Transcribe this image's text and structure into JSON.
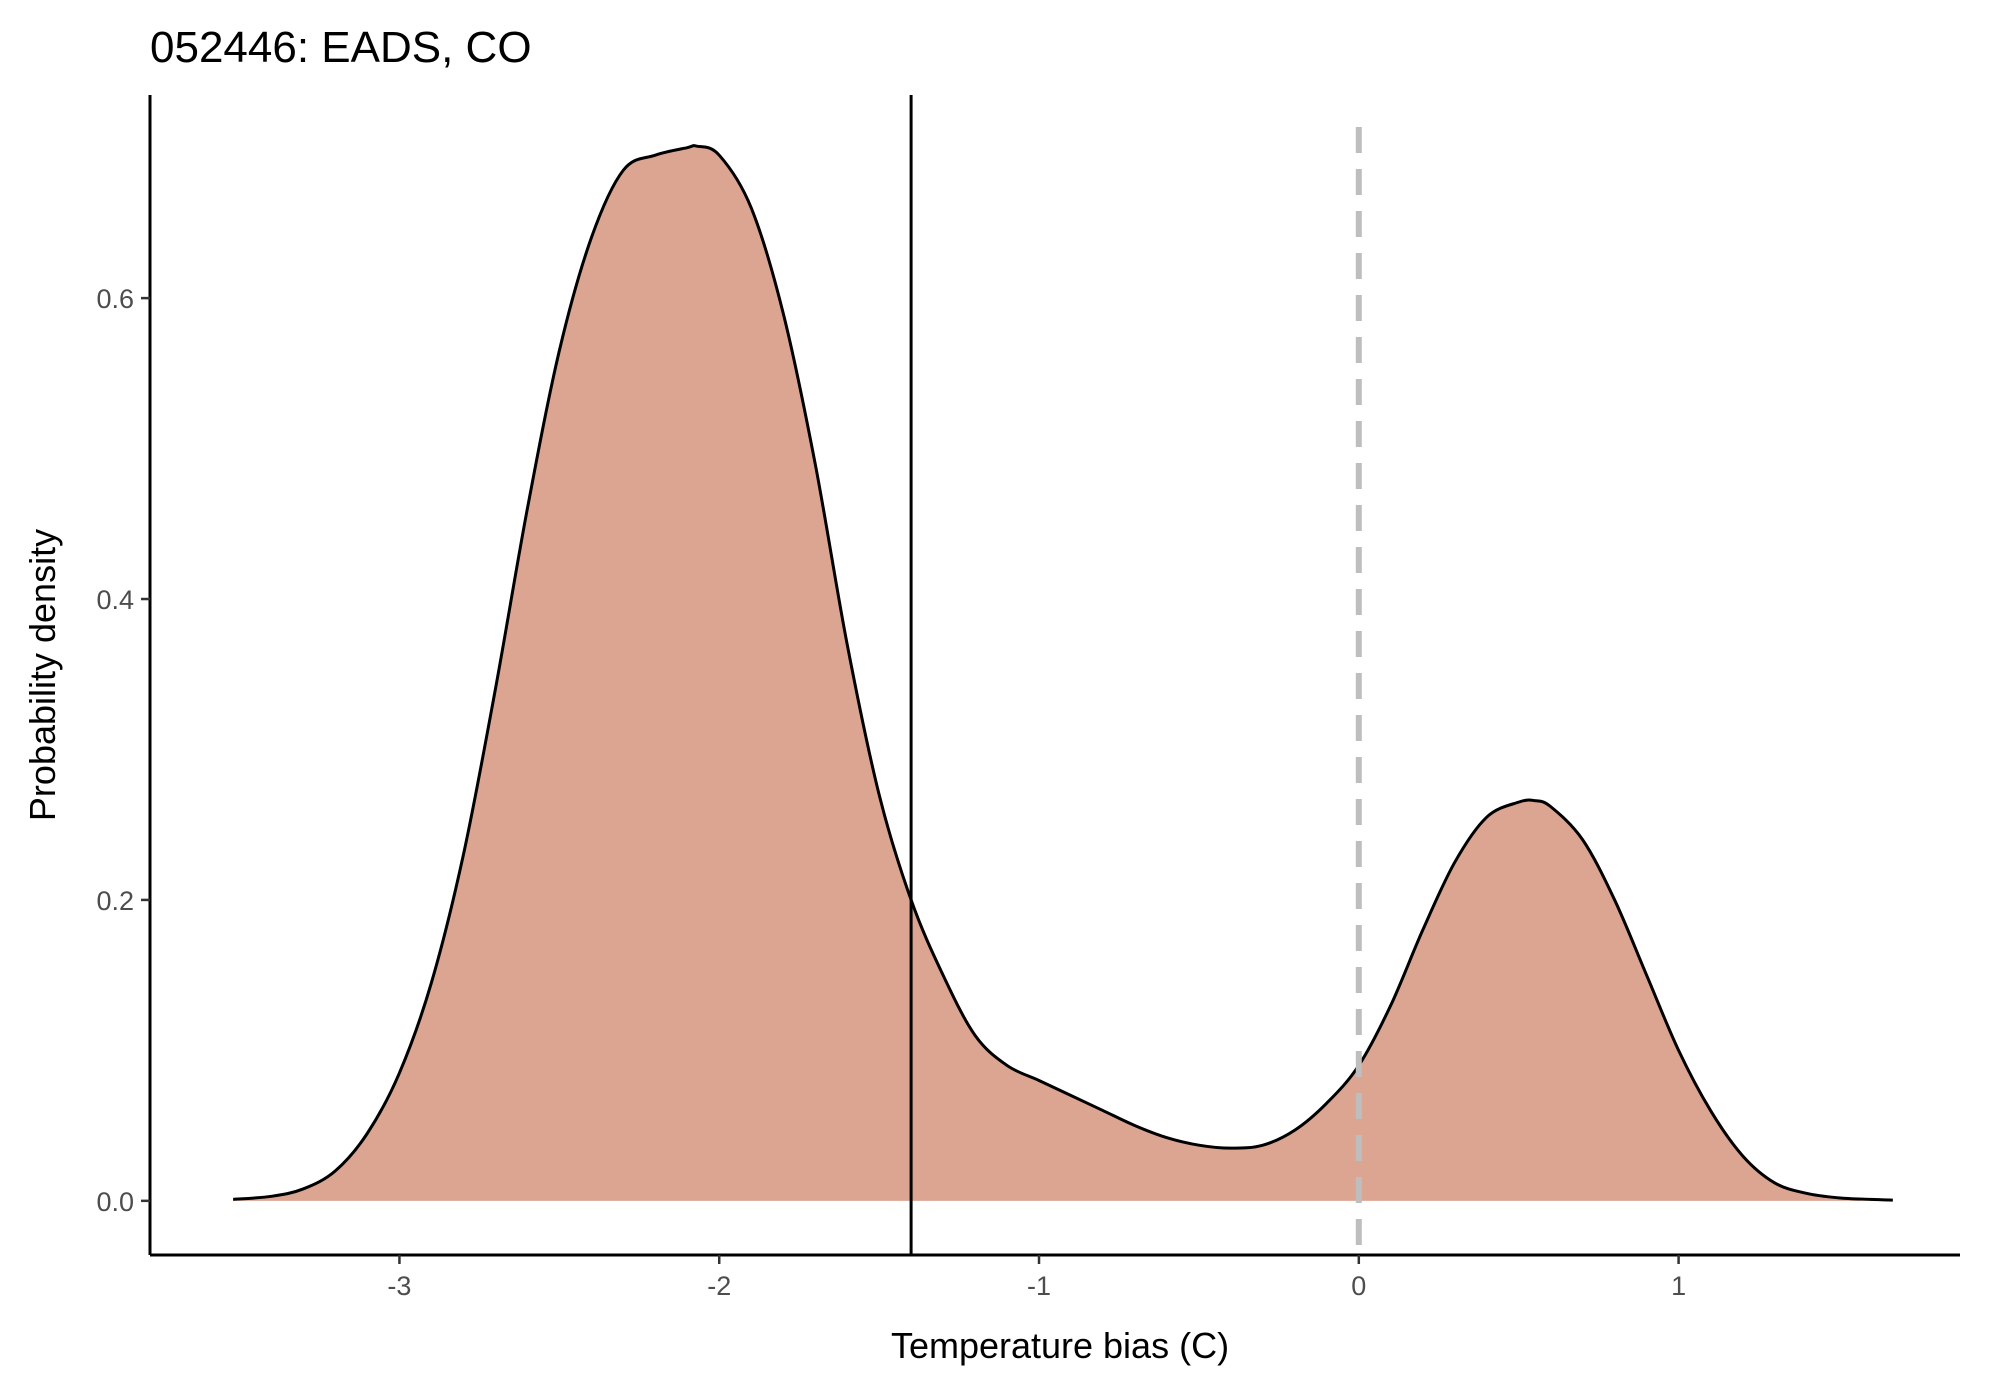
{
  "chart_data": {
    "type": "area",
    "title": "052446: EADS, CO",
    "xlabel": "Temperature bias (C)",
    "ylabel": "Probability density",
    "xlim": [
      -3.78,
      1.88
    ],
    "ylim": [
      -0.036,
      0.735
    ],
    "x_ticks": [
      -3,
      -2,
      -1,
      0,
      1
    ],
    "x_tick_labels": [
      "-3",
      "-2",
      "-1",
      "0",
      "1"
    ],
    "y_ticks": [
      0.0,
      0.2,
      0.4,
      0.6
    ],
    "y_tick_labels": [
      "0.0",
      "0.2",
      "0.4",
      "0.6"
    ],
    "grid": false,
    "legend": "none",
    "fill_color": "#DBA592",
    "line_color": "#000000",
    "series": [
      {
        "x": [
          -3.52,
          -3.4,
          -3.3,
          -3.2,
          -3.1,
          -3.0,
          -2.9,
          -2.8,
          -2.7,
          -2.6,
          -2.5,
          -2.4,
          -2.3,
          -2.2,
          -2.1,
          -2.07,
          -2.0,
          -1.9,
          -1.8,
          -1.7,
          -1.6,
          -1.5,
          -1.4,
          -1.3,
          -1.2,
          -1.1,
          -1.0,
          -0.9,
          -0.8,
          -0.7,
          -0.6,
          -0.5,
          -0.4,
          -0.3,
          -0.2,
          -0.1,
          0.0,
          0.1,
          0.2,
          0.3,
          0.4,
          0.5,
          0.55,
          0.6,
          0.7,
          0.8,
          0.9,
          1.0,
          1.1,
          1.2,
          1.3,
          1.4,
          1.5,
          1.6,
          1.67
        ],
        "y": [
          0.001,
          0.003,
          0.008,
          0.02,
          0.045,
          0.085,
          0.145,
          0.23,
          0.34,
          0.46,
          0.565,
          0.64,
          0.685,
          0.695,
          0.7,
          0.701,
          0.695,
          0.66,
          0.59,
          0.49,
          0.37,
          0.27,
          0.2,
          0.15,
          0.11,
          0.09,
          0.08,
          0.07,
          0.06,
          0.05,
          0.042,
          0.037,
          0.035,
          0.037,
          0.047,
          0.065,
          0.09,
          0.13,
          0.18,
          0.225,
          0.255,
          0.265,
          0.266,
          0.262,
          0.24,
          0.2,
          0.15,
          0.1,
          0.06,
          0.03,
          0.012,
          0.005,
          0.002,
          0.001,
          0.0005
        ]
      }
    ],
    "vlines": [
      {
        "x": -1.4,
        "style": "solid",
        "color": "#000000"
      },
      {
        "x": 0.0,
        "style": "dashed",
        "color": "#BEBEBE"
      }
    ]
  }
}
